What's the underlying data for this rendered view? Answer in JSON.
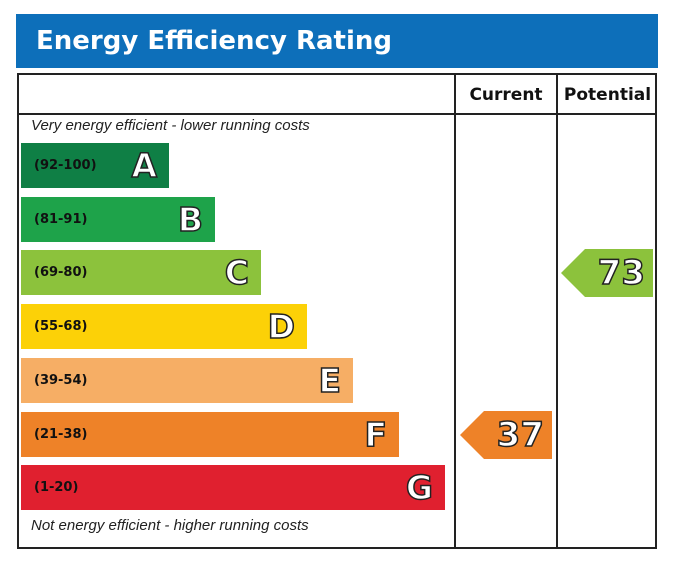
{
  "title": "Energy Efficiency Rating",
  "columns": {
    "current": "Current",
    "potential": "Potential"
  },
  "captions": {
    "top": "Very energy efficient - lower running costs",
    "bottom": "Not energy efficient - higher running costs"
  },
  "chart_data": {
    "type": "bar",
    "title": "Energy Efficiency Rating",
    "bands": [
      {
        "letter": "A",
        "range": "(92-100)",
        "color": "#0f7f45"
      },
      {
        "letter": "B",
        "range": "(81-91)",
        "color": "#1ea34a"
      },
      {
        "letter": "C",
        "range": "(69-80)",
        "color": "#8cc23c"
      },
      {
        "letter": "D",
        "range": "(55-68)",
        "color": "#fcd107"
      },
      {
        "letter": "E",
        "range": "(39-54)",
        "color": "#f6ae65"
      },
      {
        "letter": "F",
        "range": "(21-38)",
        "color": "#ee8228"
      },
      {
        "letter": "G",
        "range": "(1-20)",
        "color": "#e0202f"
      }
    ],
    "current": {
      "label": "Current",
      "value": 37,
      "band": "F",
      "color": "#ee8228"
    },
    "potential": {
      "label": "Potential",
      "value": 73,
      "band": "C",
      "color": "#8cc23c"
    }
  }
}
